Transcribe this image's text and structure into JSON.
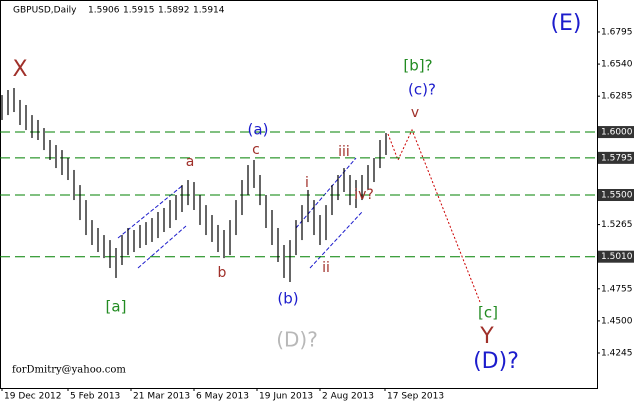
{
  "chart_data": {
    "type": "ohlc",
    "symbol": "GBPUSD,Daily",
    "last_quote": [
      1.5906,
      1.5915,
      1.5892,
      1.5914
    ],
    "watermark": "forDmitry@yahoo.com",
    "color": "#000000",
    "x": [
      1,
      4,
      7,
      10,
      13,
      16,
      19,
      22,
      25,
      28,
      31,
      34,
      37,
      40,
      43,
      46,
      49,
      52,
      55,
      58,
      61,
      64,
      67,
      70,
      73,
      76,
      79,
      82,
      85,
      88,
      91,
      94,
      97,
      100,
      103,
      106,
      109,
      112,
      115,
      118,
      121,
      124,
      127,
      130,
      133,
      136,
      139,
      142,
      145,
      148,
      151,
      154,
      157,
      160,
      163,
      166,
      169,
      172,
      175,
      178,
      181,
      184,
      187,
      190,
      193
    ],
    "high": [
      1.6294,
      1.6334,
      1.635,
      1.6255,
      1.6215,
      1.6135,
      1.6096,
      1.6032,
      1.5937,
      1.5897,
      1.5857,
      1.5794,
      1.5699,
      1.5579,
      1.546,
      1.5301,
      1.5238,
      1.5182,
      1.5142,
      1.5079,
      1.5182,
      1.5238,
      1.5222,
      1.5262,
      1.5285,
      1.5317,
      1.5365,
      1.5397,
      1.546,
      1.55,
      1.5579,
      1.5619,
      1.5603,
      1.55,
      1.542,
      1.5341,
      1.5262,
      1.5222,
      1.5301,
      1.546,
      1.5619,
      1.5738,
      1.5778,
      1.5659,
      1.55,
      1.5381,
      1.5238,
      1.5103,
      1.5142,
      1.5301,
      1.542,
      1.554,
      1.546,
      1.5341,
      1.542,
      1.5579,
      1.5659,
      1.5714,
      1.5659,
      1.5619,
      1.5659,
      1.5738,
      1.5794,
      1.5937,
      1.5992
    ],
    "low": [
      1.6096,
      1.6135,
      1.6159,
      1.6056,
      1.6016,
      1.5953,
      1.5937,
      1.5857,
      1.5778,
      1.5714,
      1.5659,
      1.5619,
      1.546,
      1.5301,
      1.5182,
      1.5103,
      1.5047,
      1.4999,
      1.492,
      1.4841,
      1.4944,
      1.5023,
      1.5047,
      1.5079,
      1.5103,
      1.5127,
      1.5158,
      1.5206,
      1.5238,
      1.5301,
      1.5365,
      1.542,
      1.5381,
      1.5262,
      1.5182,
      1.5127,
      1.5047,
      1.4999,
      1.5023,
      1.5182,
      1.5341,
      1.55,
      1.5556,
      1.542,
      1.5238,
      1.5103,
      1.4968,
      1.4841,
      1.4809,
      1.5023,
      1.5142,
      1.5285,
      1.5182,
      1.5103,
      1.5142,
      1.5341,
      1.546,
      1.5524,
      1.542,
      1.5397,
      1.546,
      1.554,
      1.5603,
      1.5714,
      1.5818
    ],
    "xlim": [
      0,
      298.5
    ],
    "ylim": [
      1.3967,
      1.7049
    ],
    "xticks": [
      {
        "value": 1,
        "label": "19 Dec 2012"
      },
      {
        "value": 34,
        "label": "5 Feb 2013"
      },
      {
        "value": 65.5,
        "label": "21 Mar 2013"
      },
      {
        "value": 97,
        "label": "6 May 2013"
      },
      {
        "value": 128.5,
        "label": "19 Jun 2013"
      },
      {
        "value": 160,
        "label": "2 Aug 2013"
      },
      {
        "value": 192.5,
        "label": "17 Sep 2013"
      }
    ],
    "yticks": [
      1.6795,
      {
        "value": 1.654,
        "label": "1.6540"
      },
      1.6285,
      1.5265,
      1.4755,
      {
        "value": 1.45,
        "label": "1.4500"
      },
      1.4245
    ],
    "levels": [
      {
        "value": 1.6,
        "label": "1.6000"
      },
      {
        "value": 1.5795,
        "label": "1.5795"
      },
      {
        "value": 1.55,
        "label": "1.5500"
      },
      {
        "value": 1.501,
        "label": "1.5010"
      }
    ],
    "level_color": "#008000",
    "annotations": [
      {
        "text": "X",
        "color": "#a0302a"
      },
      {
        "text": "(E)",
        "color": "#1c1ccc"
      },
      {
        "text": "[b]?",
        "color": "#228b22"
      },
      {
        "text": "(c)?",
        "color": "#1c1ccc"
      },
      {
        "text": "v",
        "color": "#a0302a"
      },
      {
        "text": "(a)",
        "color": "#1c1ccc"
      },
      {
        "text": "c",
        "color": "#a0302a"
      },
      {
        "text": "a",
        "color": "#a0302a"
      },
      {
        "text": "iii",
        "color": "#a0302a"
      },
      {
        "text": "i",
        "color": "#a0302a"
      },
      {
        "text": "iv?",
        "color": "#a0302a"
      },
      {
        "text": "ii",
        "color": "#a0302a"
      },
      {
        "text": "b",
        "color": "#a0302a"
      },
      {
        "text": "[a]",
        "color": "#228b22"
      },
      {
        "text": "(b)",
        "color": "#1c1ccc"
      },
      {
        "text": "(D)?",
        "color": "#b8b8b8"
      },
      {
        "text": "[c]",
        "color": "#228b22"
      },
      {
        "text": "Y",
        "color": "#a0302a"
      },
      {
        "text": "(D)?",
        "color": "#1c1ccc"
      }
    ]
  }
}
